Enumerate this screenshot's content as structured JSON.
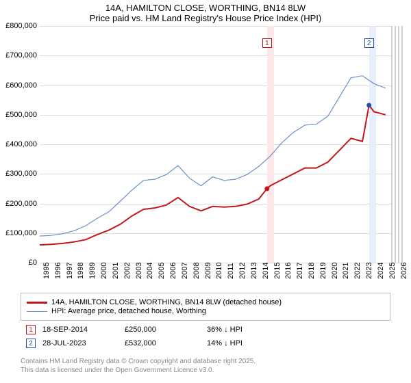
{
  "title_line1": "14A, HAMILTON CLOSE, WORTHING, BN14 8LW",
  "title_line2": "Price paid vs. HM Land Registry's House Price Index (HPI)",
  "chart": {
    "type": "line",
    "background_color": "#ffffff",
    "grid_color": "#dcdcdc",
    "x_years": [
      1995,
      1996,
      1997,
      1998,
      1999,
      2000,
      2001,
      2002,
      2003,
      2004,
      2005,
      2006,
      2007,
      2008,
      2009,
      2010,
      2011,
      2012,
      2013,
      2014,
      2015,
      2016,
      2017,
      2018,
      2019,
      2020,
      2021,
      2022,
      2023,
      2024,
      2025,
      2026
    ],
    "x_label_years": [
      1995,
      1996,
      1997,
      1998,
      1999,
      2000,
      2001,
      2002,
      2003,
      2004,
      2005,
      2006,
      2007,
      2008,
      2009,
      2010,
      2011,
      2012,
      2013,
      2014,
      2015,
      2016,
      2017,
      2018,
      2019,
      2020,
      2021,
      2022,
      2023,
      2024,
      2025,
      2026
    ],
    "xlim": [
      1995,
      2026.5
    ],
    "ylim": [
      0,
      800000
    ],
    "ytick_step": 100000,
    "yticks": [
      "£0",
      "£100,000",
      "£200,000",
      "£300,000",
      "£400,000",
      "£500,000",
      "£600,000",
      "£700,000",
      "£800,000"
    ],
    "shaded_bands": [
      {
        "from": 2014.72,
        "to": 2015.3,
        "color": "#fce8e8"
      },
      {
        "from": 2023.57,
        "to": 2024.2,
        "color": "#e8eefb"
      },
      {
        "from": 2025.5,
        "to": 2026.5,
        "pattern": "hatch",
        "color": "#d0d0d0"
      }
    ],
    "series": [
      {
        "name": "property",
        "label": "14A, HAMILTON CLOSE, WORTHING, BN14 8LW (detached house)",
        "color": "#c4161c",
        "width": 2,
        "data": [
          [
            1995,
            60000
          ],
          [
            1996,
            62000
          ],
          [
            1997,
            65000
          ],
          [
            1998,
            70000
          ],
          [
            1999,
            78000
          ],
          [
            2000,
            95000
          ],
          [
            2001,
            110000
          ],
          [
            2002,
            130000
          ],
          [
            2003,
            158000
          ],
          [
            2004,
            180000
          ],
          [
            2005,
            185000
          ],
          [
            2006,
            195000
          ],
          [
            2007,
            220000
          ],
          [
            2008,
            190000
          ],
          [
            2009,
            175000
          ],
          [
            2010,
            190000
          ],
          [
            2011,
            188000
          ],
          [
            2012,
            190000
          ],
          [
            2013,
            198000
          ],
          [
            2014,
            215000
          ],
          [
            2014.72,
            250000
          ],
          [
            2015,
            260000
          ],
          [
            2016,
            280000
          ],
          [
            2017,
            300000
          ],
          [
            2018,
            320000
          ],
          [
            2019,
            320000
          ],
          [
            2020,
            340000
          ],
          [
            2021,
            380000
          ],
          [
            2022,
            420000
          ],
          [
            2023,
            410000
          ],
          [
            2023.57,
            532000
          ],
          [
            2024,
            510000
          ],
          [
            2025,
            500000
          ]
        ]
      },
      {
        "name": "hpi",
        "label": "HPI: Average price, detached house, Worthing",
        "color": "#6b8fc9",
        "width": 1.2,
        "data": [
          [
            1995,
            90000
          ],
          [
            1996,
            92000
          ],
          [
            1997,
            98000
          ],
          [
            1998,
            108000
          ],
          [
            1999,
            125000
          ],
          [
            2000,
            150000
          ],
          [
            2001,
            172000
          ],
          [
            2002,
            208000
          ],
          [
            2003,
            245000
          ],
          [
            2004,
            278000
          ],
          [
            2005,
            282000
          ],
          [
            2006,
            298000
          ],
          [
            2007,
            328000
          ],
          [
            2008,
            285000
          ],
          [
            2009,
            260000
          ],
          [
            2010,
            290000
          ],
          [
            2011,
            278000
          ],
          [
            2012,
            282000
          ],
          [
            2013,
            298000
          ],
          [
            2014,
            325000
          ],
          [
            2015,
            360000
          ],
          [
            2016,
            405000
          ],
          [
            2017,
            440000
          ],
          [
            2018,
            465000
          ],
          [
            2019,
            468000
          ],
          [
            2020,
            495000
          ],
          [
            2021,
            560000
          ],
          [
            2022,
            625000
          ],
          [
            2023,
            632000
          ],
          [
            2024,
            605000
          ],
          [
            2025,
            590000
          ]
        ]
      }
    ],
    "markers": [
      {
        "id": "1",
        "year": 2014.72,
        "y": 250000,
        "color": "#c4161c"
      },
      {
        "id": "2",
        "year": 2023.57,
        "y": 532000,
        "color": "#2b4fa8"
      }
    ]
  },
  "legend": {
    "items": [
      {
        "color": "#c4161c",
        "width": 3,
        "label": "14A, HAMILTON CLOSE, WORTHING, BN14 8LW (detached house)"
      },
      {
        "color": "#6b8fc9",
        "width": 1,
        "label": "HPI: Average price, detached house, Worthing"
      }
    ]
  },
  "marker_table": [
    {
      "id": "1",
      "color": "#c4161c",
      "date": "18-SEP-2014",
      "price": "£250,000",
      "delta": "36% ↓ HPI"
    },
    {
      "id": "2",
      "color": "#2b4fa8",
      "date": "28-JUL-2023",
      "price": "£532,000",
      "delta": "14% ↓ HPI"
    }
  ],
  "footer_line1": "Contains HM Land Registry data © Crown copyright and database right 2025.",
  "footer_line2": "This data is licensed under the Open Government Licence v3.0."
}
